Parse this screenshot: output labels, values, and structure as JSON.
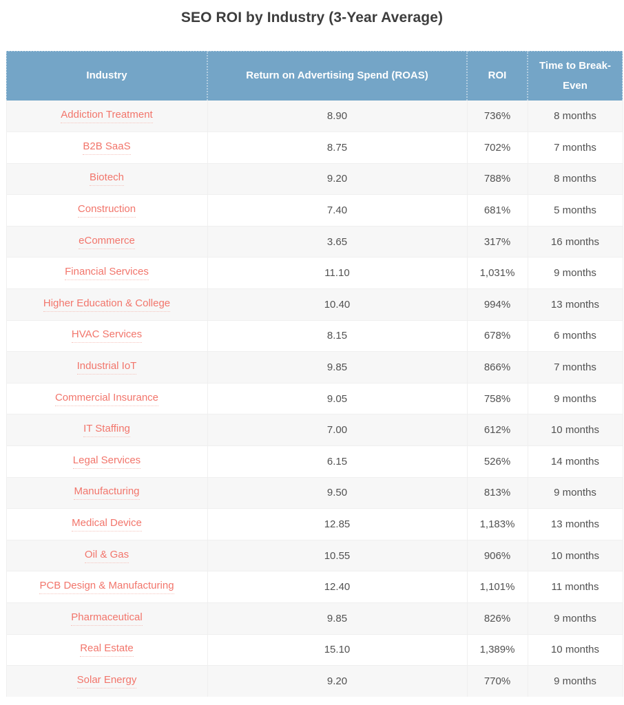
{
  "title": "SEO ROI by Industry (3-Year Average)",
  "colors": {
    "header_bg": "#74a5c7",
    "header_text": "#ffffff",
    "link": "#f2756b",
    "link_underline": "#f6c3bc",
    "row_alt_bg": "#f7f7f7",
    "row_bg": "#ffffff",
    "body_text": "#515151",
    "title_text": "#3d3d3d",
    "divider": "#efefef"
  },
  "chart_data": {
    "type": "table",
    "title": "SEO ROI by Industry (3-Year Average)",
    "columns": [
      "Industry",
      "Return on Advertising Spend (ROAS)",
      "ROI",
      "Time to Break-Even"
    ],
    "rows": [
      {
        "industry": "Addiction Treatment",
        "roas": "8.90",
        "roas_value": 8.9,
        "roi": "736%",
        "roi_percent": 736,
        "break_even": "8 months",
        "break_even_months": 8
      },
      {
        "industry": "B2B SaaS",
        "roas": "8.75",
        "roas_value": 8.75,
        "roi": "702%",
        "roi_percent": 702,
        "break_even": "7 months",
        "break_even_months": 7
      },
      {
        "industry": "Biotech",
        "roas": "9.20",
        "roas_value": 9.2,
        "roi": "788%",
        "roi_percent": 788,
        "break_even": "8 months",
        "break_even_months": 8
      },
      {
        "industry": "Construction",
        "roas": "7.40",
        "roas_value": 7.4,
        "roi": "681%",
        "roi_percent": 681,
        "break_even": "5 months",
        "break_even_months": 5
      },
      {
        "industry": "eCommerce",
        "roas": "3.65",
        "roas_value": 3.65,
        "roi": "317%",
        "roi_percent": 317,
        "break_even": "16 months",
        "break_even_months": 16
      },
      {
        "industry": "Financial Services",
        "roas": "11.10",
        "roas_value": 11.1,
        "roi": "1,031%",
        "roi_percent": 1031,
        "break_even": "9 months",
        "break_even_months": 9
      },
      {
        "industry": "Higher Education & College",
        "roas": "10.40",
        "roas_value": 10.4,
        "roi": "994%",
        "roi_percent": 994,
        "break_even": "13 months",
        "break_even_months": 13
      },
      {
        "industry": "HVAC Services",
        "roas": "8.15",
        "roas_value": 8.15,
        "roi": "678%",
        "roi_percent": 678,
        "break_even": "6 months",
        "break_even_months": 6
      },
      {
        "industry": "Industrial IoT",
        "roas": "9.85",
        "roas_value": 9.85,
        "roi": "866%",
        "roi_percent": 866,
        "break_even": "7 months",
        "break_even_months": 7
      },
      {
        "industry": "Commercial Insurance",
        "roas": "9.05",
        "roas_value": 9.05,
        "roi": "758%",
        "roi_percent": 758,
        "break_even": "9 months",
        "break_even_months": 9
      },
      {
        "industry": "IT Staffing",
        "roas": "7.00",
        "roas_value": 7.0,
        "roi": "612%",
        "roi_percent": 612,
        "break_even": "10 months",
        "break_even_months": 10
      },
      {
        "industry": "Legal Services",
        "roas": "6.15",
        "roas_value": 6.15,
        "roi": "526%",
        "roi_percent": 526,
        "break_even": "14 months",
        "break_even_months": 14
      },
      {
        "industry": "Manufacturing",
        "roas": "9.50",
        "roas_value": 9.5,
        "roi": "813%",
        "roi_percent": 813,
        "break_even": "9 months",
        "break_even_months": 9
      },
      {
        "industry": "Medical Device",
        "roas": "12.85",
        "roas_value": 12.85,
        "roi": "1,183%",
        "roi_percent": 1183,
        "break_even": "13 months",
        "break_even_months": 13
      },
      {
        "industry": "Oil & Gas",
        "roas": "10.55",
        "roas_value": 10.55,
        "roi": "906%",
        "roi_percent": 906,
        "break_even": "10 months",
        "break_even_months": 10
      },
      {
        "industry": "PCB Design & Manufacturing",
        "roas": "12.40",
        "roas_value": 12.4,
        "roi": "1,101%",
        "roi_percent": 1101,
        "break_even": "11 months",
        "break_even_months": 11
      },
      {
        "industry": "Pharmaceutical",
        "roas": "9.85",
        "roas_value": 9.85,
        "roi": "826%",
        "roi_percent": 826,
        "break_even": "9 months",
        "break_even_months": 9
      },
      {
        "industry": "Real Estate",
        "roas": "15.10",
        "roas_value": 15.1,
        "roi": "1,389%",
        "roi_percent": 1389,
        "break_even": "10 months",
        "break_even_months": 10
      },
      {
        "industry": "Solar Energy",
        "roas": "9.20",
        "roas_value": 9.2,
        "roi": "770%",
        "roi_percent": 770,
        "break_even": "9 months",
        "break_even_months": 9
      }
    ]
  }
}
